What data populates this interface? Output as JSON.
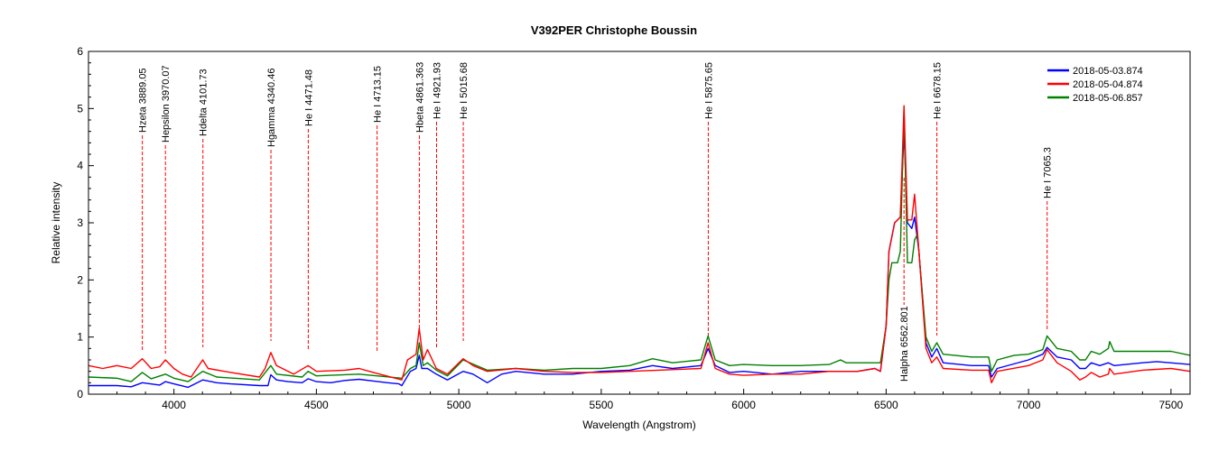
{
  "chart_data": {
    "type": "line",
    "title": "V392PER   Christophe Boussin",
    "xlabel": "Wavelength (Angstrom)",
    "ylabel": "Relative intensity",
    "xlim": [
      3700,
      7567
    ],
    "ylim": [
      0,
      6
    ],
    "xticks": [
      4000,
      4500,
      5000,
      5500,
      6000,
      6500,
      7000,
      7500
    ],
    "yticks": [
      0,
      1,
      2,
      3,
      4,
      5,
      6
    ],
    "grid": false,
    "legend_position": "top-right",
    "series": [
      {
        "name": "2018-05-03.874",
        "color": "#0000ff",
        "x": [
          3700,
          3800,
          3850,
          3889,
          3950,
          3970,
          4000,
          4050,
          4101,
          4150,
          4200,
          4300,
          4330,
          4340,
          4360,
          4400,
          4450,
          4471,
          4500,
          4550,
          4600,
          4650,
          4700,
          4750,
          4790,
          4800,
          4830,
          4850,
          4861,
          4870,
          4890,
          4921,
          4960,
          5015,
          5050,
          5100,
          5150,
          5200,
          5300,
          5400,
          5500,
          5600,
          5680,
          5750,
          5850,
          5875,
          5900,
          5950,
          6000,
          6100,
          6200,
          6300,
          6400,
          6460,
          6480,
          6500,
          6510,
          6530,
          6550,
          6563,
          6575,
          6590,
          6600,
          6615,
          6640,
          6660,
          6678,
          6700,
          6800,
          6860,
          6870,
          6890,
          7000,
          7050,
          7065,
          7100,
          7150,
          7180,
          7200,
          7220,
          7250,
          7280,
          7300,
          7400,
          7450,
          7567
        ],
        "y": [
          0.15,
          0.15,
          0.13,
          0.2,
          0.16,
          0.22,
          0.18,
          0.12,
          0.25,
          0.2,
          0.18,
          0.15,
          0.15,
          0.34,
          0.25,
          0.22,
          0.2,
          0.27,
          0.22,
          0.2,
          0.24,
          0.26,
          0.23,
          0.2,
          0.18,
          0.15,
          0.4,
          0.45,
          0.68,
          0.45,
          0.45,
          0.35,
          0.25,
          0.4,
          0.35,
          0.2,
          0.35,
          0.4,
          0.35,
          0.35,
          0.4,
          0.42,
          0.5,
          0.45,
          0.5,
          0.8,
          0.5,
          0.38,
          0.4,
          0.35,
          0.4,
          0.4,
          0.4,
          0.45,
          0.4,
          1.2,
          2.5,
          3.0,
          3.1,
          4.6,
          3.0,
          2.9,
          3.1,
          2.5,
          0.9,
          0.65,
          0.8,
          0.55,
          0.5,
          0.5,
          0.3,
          0.45,
          0.6,
          0.7,
          0.82,
          0.65,
          0.6,
          0.45,
          0.45,
          0.55,
          0.5,
          0.55,
          0.5,
          0.55,
          0.57,
          0.52
        ]
      },
      {
        "name": "2018-05-04.874",
        "color": "#ff0000",
        "x": [
          3700,
          3750,
          3800,
          3850,
          3889,
          3920,
          3950,
          3970,
          4000,
          4030,
          4060,
          4101,
          4120,
          4200,
          4300,
          4320,
          4340,
          4360,
          4420,
          4471,
          4500,
          4600,
          4650,
          4700,
          4800,
          4820,
          4850,
          4861,
          4875,
          4890,
          4921,
          4960,
          5015,
          5050,
          5100,
          5200,
          5300,
          5400,
          5500,
          5600,
          5700,
          5850,
          5875,
          5900,
          5950,
          6000,
          6100,
          6200,
          6300,
          6400,
          6460,
          6480,
          6500,
          6510,
          6530,
          6550,
          6563,
          6575,
          6590,
          6600,
          6615,
          6640,
          6660,
          6678,
          6700,
          6800,
          6860,
          6870,
          6890,
          7000,
          7050,
          7065,
          7100,
          7150,
          7180,
          7200,
          7220,
          7250,
          7280,
          7285,
          7300,
          7400,
          7500,
          7567
        ],
        "y": [
          0.5,
          0.45,
          0.5,
          0.45,
          0.62,
          0.45,
          0.48,
          0.6,
          0.45,
          0.35,
          0.3,
          0.6,
          0.45,
          0.38,
          0.3,
          0.45,
          0.73,
          0.5,
          0.35,
          0.5,
          0.4,
          0.42,
          0.45,
          0.38,
          0.25,
          0.6,
          0.7,
          1.15,
          0.6,
          0.78,
          0.45,
          0.35,
          0.62,
          0.5,
          0.4,
          0.45,
          0.4,
          0.38,
          0.38,
          0.4,
          0.42,
          0.45,
          0.9,
          0.45,
          0.35,
          0.33,
          0.35,
          0.35,
          0.4,
          0.4,
          0.45,
          0.4,
          1.2,
          2.5,
          3.0,
          3.1,
          5.05,
          3.05,
          3.05,
          3.5,
          2.5,
          0.8,
          0.55,
          0.65,
          0.45,
          0.42,
          0.42,
          0.2,
          0.4,
          0.5,
          0.6,
          0.78,
          0.55,
          0.4,
          0.25,
          0.3,
          0.38,
          0.3,
          0.35,
          0.45,
          0.35,
          0.42,
          0.45,
          0.4
        ]
      },
      {
        "name": "2018-05-06.857",
        "color": "#008000",
        "x": [
          3700,
          3800,
          3850,
          3889,
          3920,
          3970,
          4000,
          4050,
          4101,
          4150,
          4300,
          4340,
          4360,
          4450,
          4471,
          4500,
          4650,
          4800,
          4830,
          4850,
          4861,
          4875,
          4890,
          4921,
          4960,
          5015,
          5100,
          5200,
          5300,
          5400,
          5500,
          5600,
          5680,
          5750,
          5850,
          5875,
          5900,
          5950,
          6000,
          6100,
          6200,
          6300,
          6340,
          6360,
          6400,
          6480,
          6500,
          6510,
          6520,
          6540,
          6550,
          6563,
          6575,
          6590,
          6600,
          6610,
          6620,
          6640,
          6660,
          6678,
          6700,
          6800,
          6860,
          6870,
          6890,
          6950,
          7000,
          7050,
          7065,
          7100,
          7150,
          7180,
          7200,
          7220,
          7250,
          7280,
          7285,
          7300,
          7400,
          7500,
          7567
        ],
        "y": [
          0.3,
          0.28,
          0.22,
          0.38,
          0.27,
          0.35,
          0.28,
          0.22,
          0.4,
          0.3,
          0.25,
          0.5,
          0.35,
          0.3,
          0.4,
          0.32,
          0.35,
          0.28,
          0.45,
          0.5,
          0.9,
          0.5,
          0.55,
          0.42,
          0.32,
          0.6,
          0.42,
          0.45,
          0.42,
          0.45,
          0.45,
          0.5,
          0.62,
          0.55,
          0.6,
          1.02,
          0.6,
          0.5,
          0.52,
          0.5,
          0.5,
          0.52,
          0.6,
          0.55,
          0.55,
          0.55,
          1.2,
          2.0,
          2.3,
          2.3,
          2.5,
          4.95,
          2.3,
          2.3,
          2.7,
          2.8,
          2.2,
          1.0,
          0.75,
          0.9,
          0.7,
          0.65,
          0.65,
          0.4,
          0.6,
          0.68,
          0.7,
          0.78,
          1.02,
          0.8,
          0.75,
          0.6,
          0.6,
          0.75,
          0.7,
          0.8,
          0.92,
          0.75,
          0.75,
          0.75,
          0.68
        ]
      }
    ],
    "annotations": [
      {
        "label": "Hzeta 3889.05",
        "x": 3889.05
      },
      {
        "label": "Hepsilon 3970.07",
        "x": 3970.07
      },
      {
        "label": "Hdelta 4101.73",
        "x": 4101.73
      },
      {
        "label": "Hgamma 4340.46",
        "x": 4340.46
      },
      {
        "label": "He I 4471.48",
        "x": 4471.48
      },
      {
        "label": "He I 4713.15",
        "x": 4713.15
      },
      {
        "label": "Hbeta 4861.363",
        "x": 4861.363
      },
      {
        "label": "He I 4921.93",
        "x": 4921.93
      },
      {
        "label": "He I 5015.68",
        "x": 5015.68
      },
      {
        "label": "He I 5875.65",
        "x": 5875.65
      },
      {
        "label": "Halpha 6562.801",
        "x": 6562.801
      },
      {
        "label": "He I 6678.15",
        "x": 6678.15
      },
      {
        "label": "He I 7065.3",
        "x": 7065.3
      }
    ]
  }
}
